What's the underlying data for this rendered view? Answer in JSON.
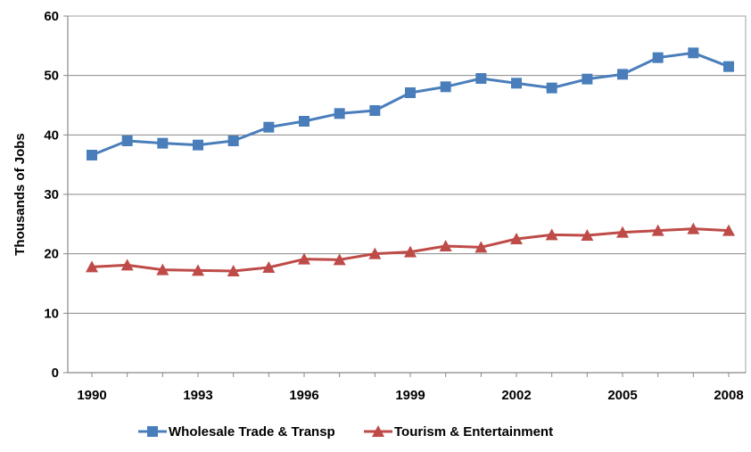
{
  "chart_data": {
    "type": "line",
    "title": "",
    "ylabel": "Thousands of Jobs",
    "xlabel": "",
    "ylim": [
      0,
      60
    ],
    "yticks": [
      0,
      10,
      20,
      30,
      40,
      50,
      60
    ],
    "xlim": [
      1990,
      2008
    ],
    "xticks": [
      1990,
      1993,
      1996,
      1999,
      2002,
      2005,
      2008
    ],
    "grid": "horizontal",
    "legend_position": "bottom",
    "x": [
      1990,
      1991,
      1992,
      1993,
      1994,
      1995,
      1996,
      1997,
      1998,
      1999,
      2000,
      2001,
      2002,
      2003,
      2004,
      2005,
      2006,
      2007,
      2008
    ],
    "series": [
      {
        "name": "Wholesale Trade & Transp",
        "color": "#4a7ebb",
        "marker": "square",
        "values": [
          36.6,
          39.0,
          38.6,
          38.3,
          39.0,
          41.3,
          42.3,
          43.6,
          44.1,
          47.1,
          48.1,
          49.5,
          48.7,
          47.9,
          49.4,
          50.2,
          53.0,
          53.8,
          51.5
        ]
      },
      {
        "name": "Tourism & Entertainment",
        "color": "#be4b48",
        "marker": "triangle",
        "values": [
          17.8,
          18.1,
          17.3,
          17.2,
          17.1,
          17.7,
          19.1,
          19.0,
          20.0,
          20.3,
          21.3,
          21.1,
          22.5,
          23.2,
          23.1,
          23.6,
          23.9,
          24.2,
          23.9
        ]
      }
    ]
  }
}
